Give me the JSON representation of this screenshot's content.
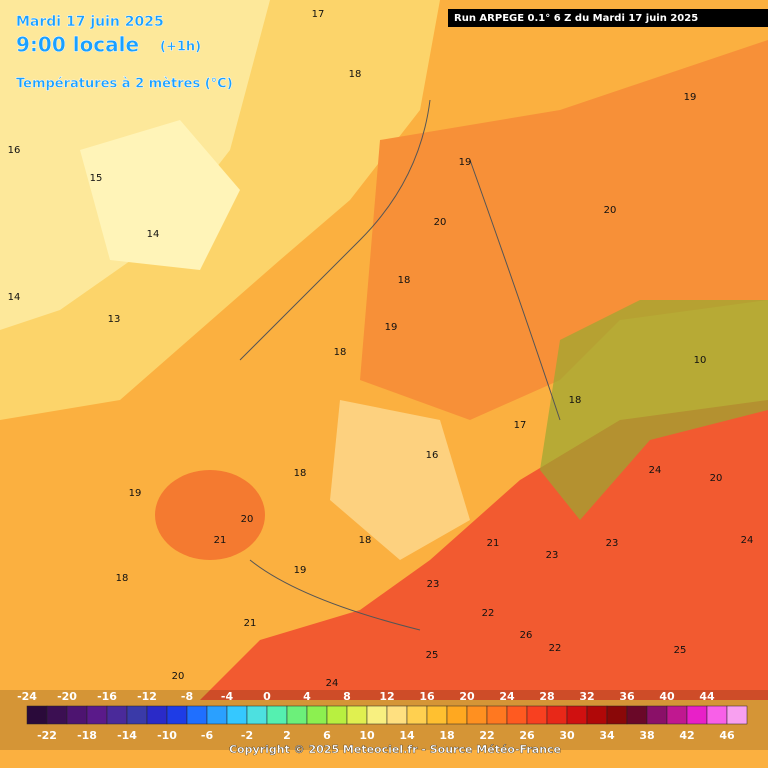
{
  "header": {
    "date": "Mardi 17 juin 2025",
    "time": "9:00 locale",
    "offset": "(+1h)",
    "field": "Températures à 2 mètres (°C)",
    "run": "Run ARPEGE 0.1° 6 Z du Mardi 17 juin 2025"
  },
  "map": {
    "labels": [
      20,
      21,
      19,
      16,
      15,
      14,
      14,
      13,
      17,
      18,
      20,
      20,
      19,
      19,
      19,
      18,
      18,
      16,
      17,
      21,
      23,
      22,
      26,
      22,
      23,
      24,
      20,
      24,
      25,
      24,
      23,
      21,
      20,
      18,
      19,
      25,
      18,
      18,
      18,
      10
    ]
  },
  "legend": {
    "colors": [
      "#2a0a3a",
      "#3b0f52",
      "#4d1470",
      "#5a1a8a",
      "#4a2a9a",
      "#3a3aa8",
      "#2a2ac8",
      "#1e3ce6",
      "#1f6fff",
      "#2aa0ff",
      "#35c8ff",
      "#4de0e0",
      "#55f0b0",
      "#6cf07a",
      "#8cf050",
      "#b8f040",
      "#e0f050",
      "#f8f080",
      "#ffe080",
      "#ffd050",
      "#ffc030",
      "#ffa820",
      "#ff9020",
      "#ff7820",
      "#ff5a20",
      "#f84020",
      "#e82818",
      "#d01010",
      "#b00808",
      "#8a0808",
      "#6a0828",
      "#8a1068",
      "#c01890",
      "#e820c8",
      "#f860e8",
      "#f8a0f0"
    ],
    "labels_top": [
      -24,
      -20,
      -16,
      -12,
      -8,
      -4,
      0,
      4,
      8,
      12,
      16,
      20,
      24,
      28,
      32,
      36,
      40,
      44
    ],
    "labels_bottom": [
      -22,
      -18,
      -14,
      -10,
      -6,
      -2,
      2,
      6,
      10,
      14,
      18,
      22,
      26,
      30,
      34,
      38,
      42,
      46
    ]
  },
  "footer": {
    "copyright": "Copyright © 2025 Meteociel.fr - Source Météo-France"
  }
}
